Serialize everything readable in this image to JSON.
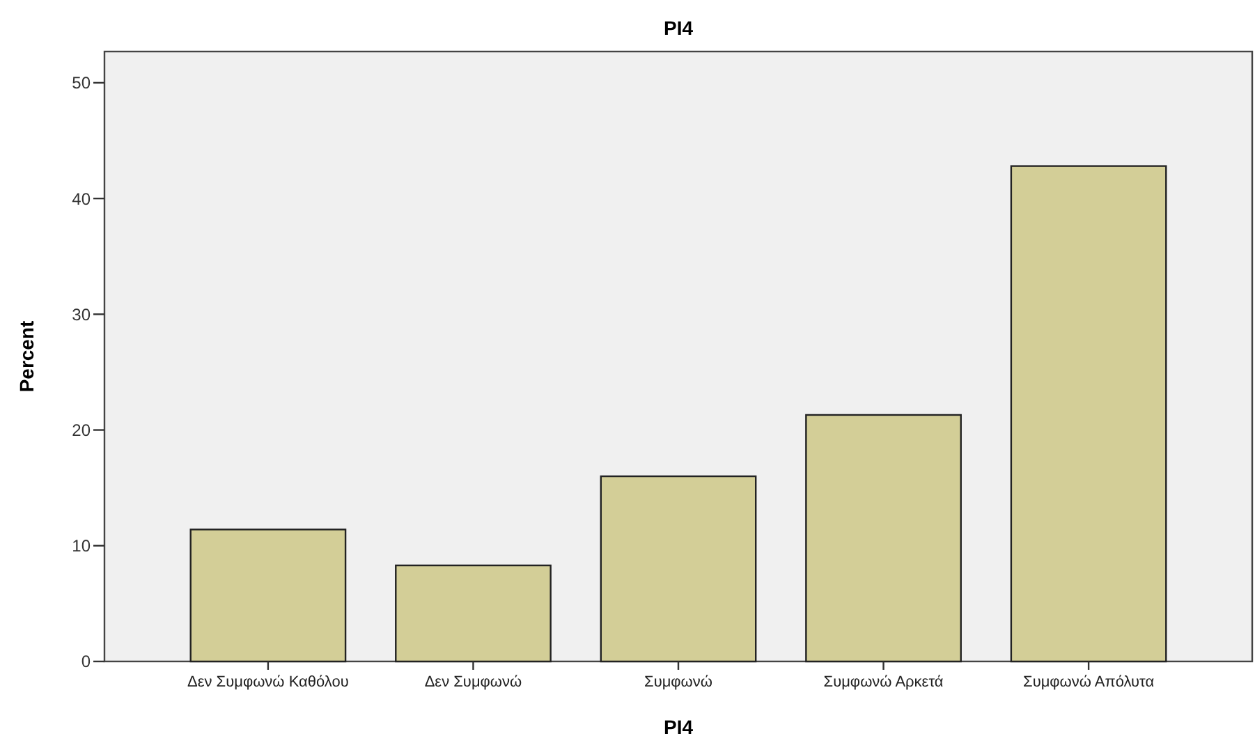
{
  "chart_data": {
    "type": "bar",
    "title": "PI4",
    "xlabel": "PI4",
    "ylabel": "Percent",
    "categories": [
      "Δεν Συμφωνώ Καθόλου",
      "Δεν Συμφωνώ",
      "Συμφωνώ",
      "Συμφωνώ Αρκετά",
      "Συμφωνώ Απόλυτα"
    ],
    "values": [
      11.4,
      8.3,
      16.0,
      21.3,
      42.8
    ],
    "color": "#d3ce97",
    "ylim": [
      0,
      52.7
    ],
    "yticks": [
      0,
      10,
      20,
      30,
      40,
      50
    ],
    "grid": false
  }
}
